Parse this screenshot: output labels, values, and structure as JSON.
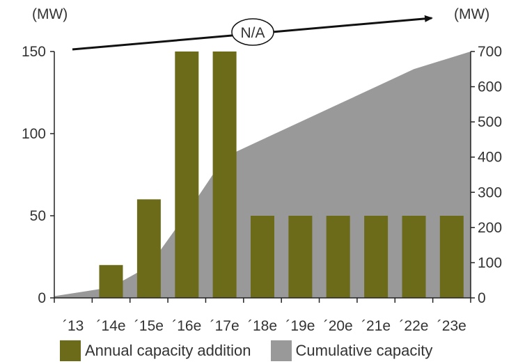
{
  "chart_data": {
    "type": "bar",
    "categories": [
      "´13",
      "´14e",
      "´15e",
      "´16e",
      "´17e",
      "´18e",
      "´19e",
      "´20e",
      "´21e",
      "´22e",
      "´23e"
    ],
    "series": [
      {
        "name": "Annual capacity addition",
        "type": "bar",
        "axis": "left",
        "color": "#6b6b1a",
        "values": [
          0,
          20,
          60,
          150,
          150,
          50,
          50,
          50,
          50,
          50,
          50
        ]
      },
      {
        "name": "Cumulative capacity",
        "type": "area",
        "axis": "right",
        "color": "#999999",
        "values": [
          5,
          30,
          90,
          240,
          400,
          450,
          500,
          550,
          600,
          650,
          700
        ]
      }
    ],
    "left_axis": {
      "unit": "(MW)",
      "ylim": [
        0,
        150
      ],
      "ticks": [
        0,
        50,
        100,
        150
      ]
    },
    "right_axis": {
      "unit": "(MW)",
      "ylim": [
        0,
        700
      ],
      "ticks": [
        0,
        100,
        200,
        300,
        400,
        500,
        600,
        700
      ]
    },
    "annotation": {
      "text": "N/A",
      "arrow": "trend arrow pointing right"
    },
    "legend_position": "bottom",
    "grid": false
  }
}
